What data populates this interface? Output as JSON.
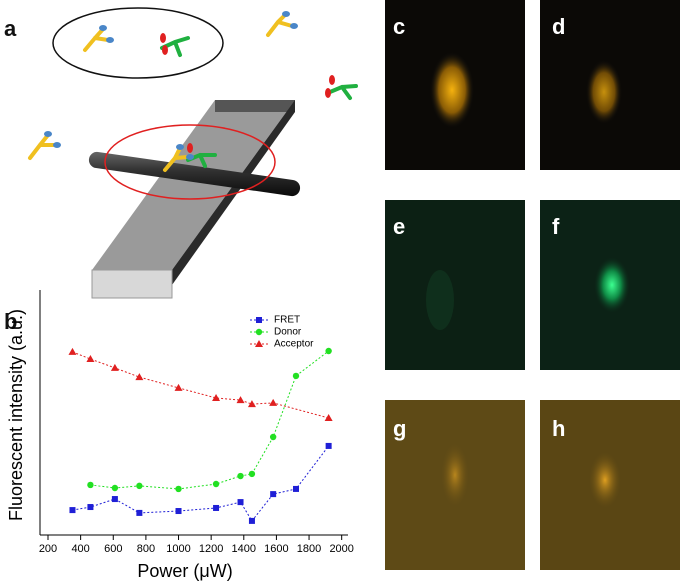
{
  "panels": {
    "a": "a",
    "b": "b",
    "c": "c",
    "d": "d",
    "e": "e",
    "f": "f",
    "g": "g",
    "h": "h"
  },
  "chart_data": {
    "type": "line",
    "xlabel": "Power (μW)",
    "ylabel": "Fluorescent intensity (a.u.)",
    "xlim": [
      200,
      2100
    ],
    "xticks": [
      200,
      400,
      600,
      800,
      1000,
      1200,
      1400,
      1600,
      1800,
      2000
    ],
    "ylim": [
      0,
      100
    ],
    "series": [
      {
        "name": "FRET",
        "color": "#1f1fd6",
        "marker": "square",
        "x": [
          350,
          460,
          610,
          760,
          1000,
          1230,
          1380,
          1450,
          1580,
          1720,
          1920
        ],
        "values": [
          10.6,
          11.9,
          15.3,
          9.4,
          10.2,
          11.5,
          14.0,
          6.0,
          17.4,
          19.6,
          37.9
        ]
      },
      {
        "name": "Donor",
        "color": "#22e022",
        "marker": "circle",
        "x": [
          460,
          610,
          760,
          1000,
          1230,
          1380,
          1450,
          1580,
          1720,
          1920
        ],
        "values": [
          21.3,
          20.0,
          20.9,
          19.6,
          21.7,
          25.1,
          26.0,
          41.7,
          67.7,
          78.3
        ]
      },
      {
        "name": "Acceptor",
        "color": "#e02020",
        "marker": "triangle",
        "x": [
          350,
          460,
          610,
          760,
          1000,
          1230,
          1380,
          1450,
          1580,
          1920
        ],
        "values": [
          77.9,
          74.9,
          71.1,
          67.2,
          62.6,
          58.3,
          57.4,
          55.7,
          56.2,
          49.8
        ]
      }
    ]
  }
}
